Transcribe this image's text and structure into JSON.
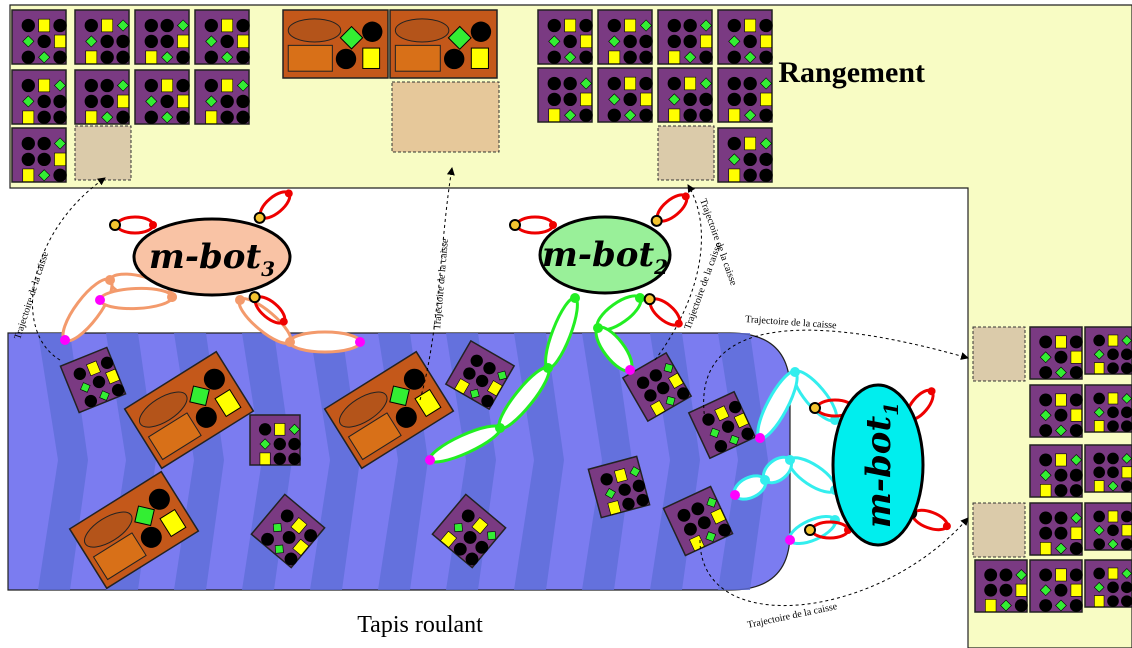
{
  "labels": {
    "storage": "Rangement",
    "conveyor": "Tapis roulant"
  },
  "robots": [
    {
      "name": "m-bot",
      "index": "3"
    },
    {
      "name": "m-bot",
      "index": "2"
    },
    {
      "name": "m-bot",
      "index": "1"
    }
  ],
  "trajectories": [
    "Trajectoire de la caisse",
    "Trajectoire de la caisse",
    "Trajectoire de la caisse",
    "Trajectoire de la caisse",
    "Trajectoire de la caisse",
    "Trajectoire de la caisse"
  ]
}
